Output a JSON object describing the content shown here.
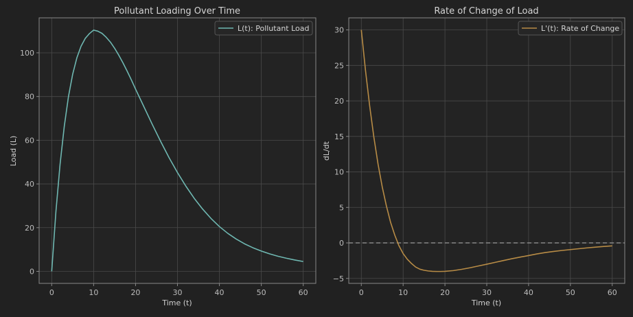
{
  "charts": {
    "0": {
      "type": "line",
      "title": "Pollutant Loading Over Time",
      "xlabel": "Time (t)",
      "ylabel": "Load (L)",
      "xlim": [
        -3,
        63
      ],
      "ylim": [
        -5.5,
        116
      ],
      "xticks": [
        0,
        10,
        20,
        30,
        40,
        50,
        60
      ],
      "yticks": [
        0,
        20,
        40,
        60,
        80,
        100
      ],
      "legend": {
        "label": "L(t): Pollutant Load",
        "placement": "top-right"
      },
      "series": [
        {
          "name": "L(t): Pollutant Load",
          "color": "#6fb8b2",
          "x": [
            0,
            1,
            2,
            3,
            4,
            5,
            6,
            7,
            8,
            9,
            10,
            11,
            12,
            13,
            14,
            15,
            16,
            17,
            18,
            19,
            20,
            22,
            24,
            26,
            28,
            30,
            32,
            34,
            36,
            38,
            40,
            42,
            44,
            46,
            48,
            50,
            52,
            54,
            56,
            58,
            60
          ],
          "y": [
            0,
            27.2,
            49.1,
            66.4,
            80.0,
            90.2,
            97.7,
            103.0,
            106.6,
            108.8,
            110.4,
            109.9,
            108.9,
            107.1,
            104.9,
            102.1,
            98.9,
            95.4,
            91.6,
            87.6,
            83.4,
            75.3,
            67.2,
            59.4,
            52.0,
            45.2,
            39.0,
            33.4,
            28.5,
            24.2,
            20.5,
            17.4,
            14.8,
            12.6,
            10.8,
            9.3,
            8.0,
            6.9,
            6.0,
            5.2,
            4.5
          ]
        }
      ]
    },
    "1": {
      "type": "line",
      "title": "Rate of Change of Load",
      "xlabel": "Time (t)",
      "ylabel": "dL/dt",
      "xlim": [
        -3,
        63
      ],
      "ylim": [
        -5.7,
        31.7
      ],
      "xticks": [
        0,
        10,
        20,
        30,
        40,
        50,
        60
      ],
      "yticks": [
        -5,
        0,
        5,
        10,
        15,
        20,
        25,
        30
      ],
      "legend": {
        "label": "L'(t): Rate of Change",
        "placement": "top-right"
      },
      "reference_line": {
        "y": 0,
        "style": "dashed"
      },
      "series": [
        {
          "name": "L'(t): Rate of Change",
          "color": "#b88c46",
          "x": [
            0,
            1,
            2,
            3,
            4,
            5,
            6,
            7,
            8,
            9,
            10,
            11,
            12,
            13,
            14,
            15,
            16,
            17,
            18,
            19,
            20,
            22,
            24,
            26,
            28,
            30,
            32,
            34,
            36,
            38,
            40,
            42,
            44,
            46,
            48,
            50,
            52,
            54,
            56,
            58,
            60
          ],
          "y": [
            30,
            24.3,
            19.3,
            14.9,
            11.1,
            7.9,
            5.2,
            2.9,
            1.1,
            -0.4,
            -1.5,
            -2.3,
            -2.9,
            -3.4,
            -3.7,
            -3.85,
            -3.95,
            -4.0,
            -4.02,
            -4.02,
            -4.0,
            -3.9,
            -3.72,
            -3.5,
            -3.25,
            -3.0,
            -2.74,
            -2.48,
            -2.23,
            -2.0,
            -1.78,
            -1.55,
            -1.36,
            -1.2,
            -1.06,
            -0.94,
            -0.82,
            -0.7,
            -0.6,
            -0.5,
            -0.42
          ]
        }
      ]
    }
  },
  "colors": {
    "background": "#212121",
    "axes_face": "#232323",
    "grid": "#4a4a4a",
    "spine": "#888888"
  }
}
